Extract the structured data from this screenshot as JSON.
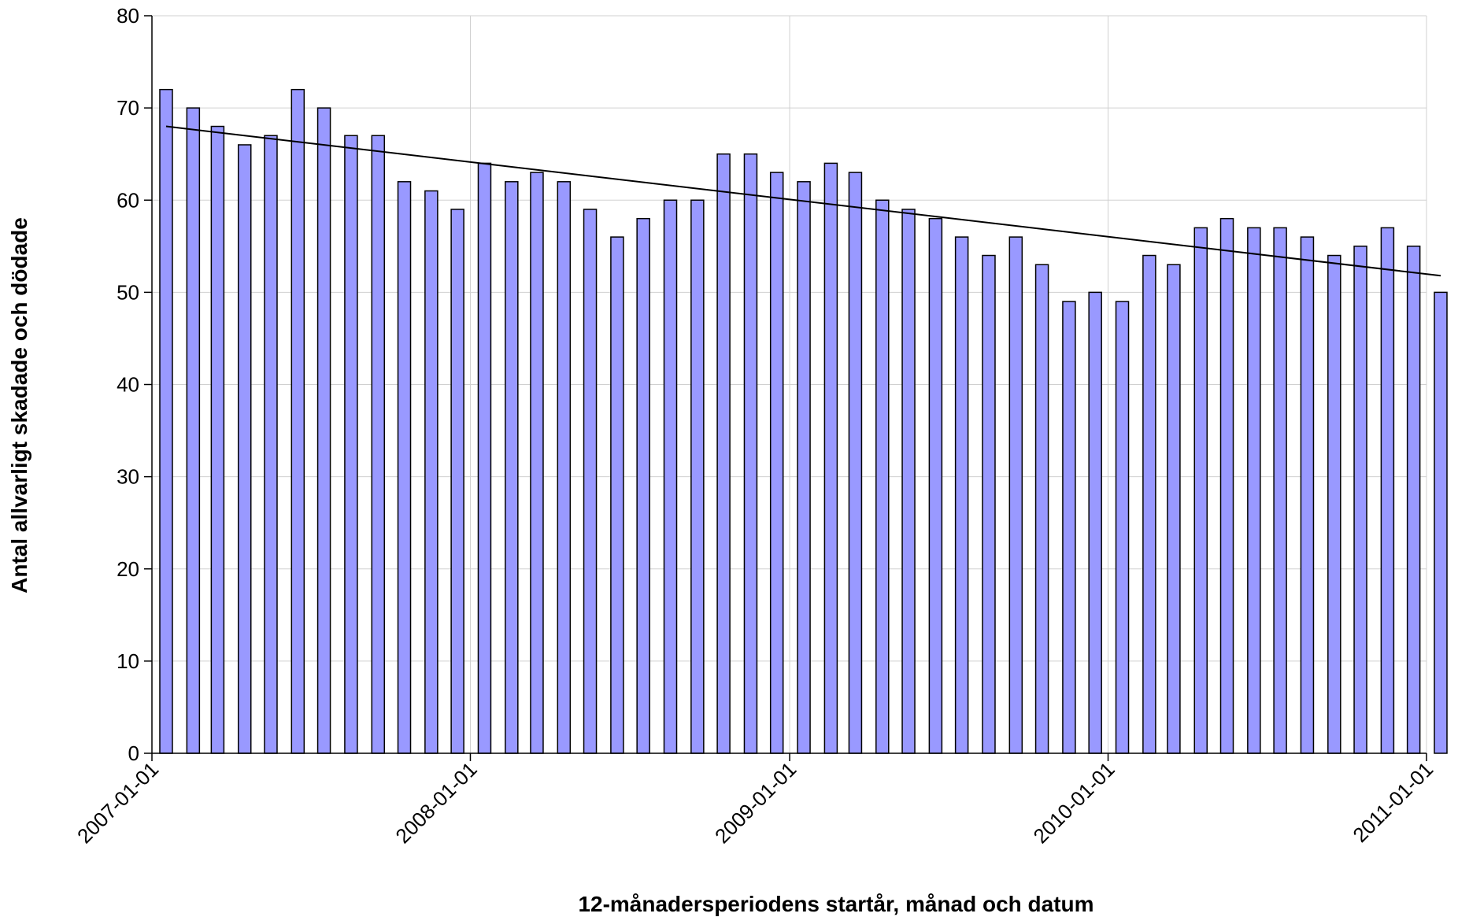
{
  "chart_data": {
    "type": "bar",
    "title": "",
    "xlabel": "12-månadersperiodens startår, månad och datum",
    "ylabel": "Antal allvarligt skadade och dödade",
    "ylim": [
      0,
      80
    ],
    "y_ticks": [
      0,
      10,
      20,
      30,
      40,
      50,
      60,
      70,
      80
    ],
    "x_range": [
      "2007-01-01",
      "2011-01-01"
    ],
    "x_tick_labels": [
      "2007-01-01",
      "2008-01-01",
      "2009-01-01",
      "2010-01-01",
      "2011-01-01"
    ],
    "grid": true,
    "legend": "none",
    "bar_color": "#9999ff",
    "categories": [
      "2007-01-01",
      "2007-02-01",
      "2007-03-01",
      "2007-04-01",
      "2007-05-01",
      "2007-06-01",
      "2007-07-01",
      "2007-08-01",
      "2007-09-01",
      "2007-10-01",
      "2007-11-01",
      "2007-12-01",
      "2008-01-01",
      "2008-02-01",
      "2008-03-01",
      "2008-04-01",
      "2008-05-01",
      "2008-06-01",
      "2008-07-01",
      "2008-08-01",
      "2008-09-01",
      "2008-10-01",
      "2008-11-01",
      "2008-12-01",
      "2009-01-01",
      "2009-02-01",
      "2009-03-01",
      "2009-04-01",
      "2009-05-01",
      "2009-06-01",
      "2009-07-01",
      "2009-08-01",
      "2009-09-01",
      "2009-10-01",
      "2009-11-01",
      "2009-12-01",
      "2010-01-01",
      "2010-02-01",
      "2010-03-01",
      "2010-04-01",
      "2010-05-01",
      "2010-06-01",
      "2010-07-01",
      "2010-08-01",
      "2010-09-01",
      "2010-10-01",
      "2010-11-01",
      "2010-12-01",
      "2011-01-01"
    ],
    "values": [
      72,
      70,
      68,
      66,
      67,
      72,
      70,
      67,
      67,
      62,
      61,
      59,
      64,
      62,
      63,
      62,
      59,
      56,
      58,
      60,
      60,
      65,
      65,
      63,
      62,
      64,
      63,
      60,
      59,
      58,
      56,
      54,
      56,
      53,
      49,
      50,
      49,
      54,
      53,
      57,
      58,
      57,
      57,
      56,
      54,
      55,
      57,
      55,
      50
    ],
    "trendline": {
      "type": "linear",
      "start": 68,
      "end": 51.8
    }
  }
}
